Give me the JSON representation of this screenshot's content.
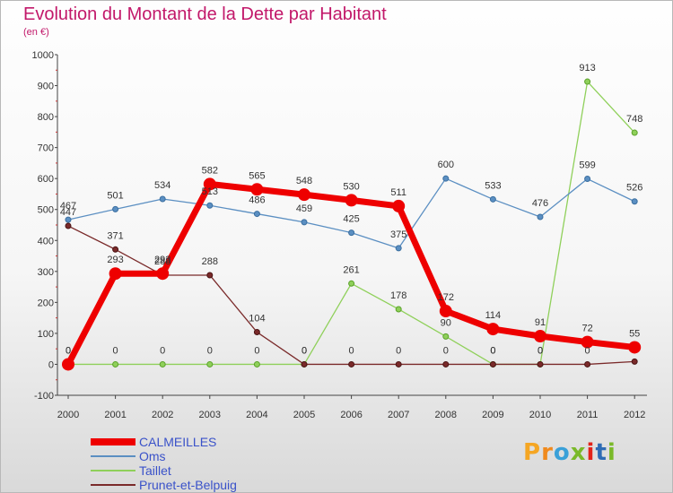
{
  "title": "Evolution du Montant de la Dette par Habitant",
  "subtitle": "(en €)",
  "logo": {
    "text": "Proxiti",
    "letters": [
      "P",
      "r",
      "o",
      "x",
      "i",
      "t",
      "i"
    ],
    "colors": [
      "#f5a623",
      "#f08a1e",
      "#3aa0d8",
      "#7ab929",
      "#e2231a",
      "#2e6cb5",
      "#7ab929"
    ]
  },
  "chart_data": {
    "type": "line",
    "x": [
      "2000",
      "2001",
      "2002",
      "2003",
      "2004",
      "2005",
      "2006",
      "2007",
      "2008",
      "2009",
      "2010",
      "2011",
      "2012"
    ],
    "y_ticks": [
      "1000",
      "900",
      "800",
      "700",
      "600",
      "500",
      "400",
      "300",
      "200",
      "100",
      "0",
      "-100"
    ],
    "ylim": [
      -100,
      1000
    ],
    "grid": false,
    "legend_position": "bottom-left",
    "series": [
      {
        "name": "CALMEILLES",
        "color": "#ee0000",
        "values": [
          0,
          293,
          293,
          582,
          565,
          548,
          530,
          511,
          172,
          114,
          91,
          72,
          55
        ],
        "labels": [
          "0",
          "293",
          "293",
          "582",
          "565",
          "548",
          "530",
          "511",
          "172",
          "114",
          "91",
          "72",
          "55"
        ]
      },
      {
        "name": "Oms",
        "color": "#5b8fc2",
        "values": [
          467,
          501,
          534,
          513,
          486,
          459,
          425,
          375,
          600,
          533,
          476,
          599,
          526
        ],
        "labels": [
          "467",
          "501",
          "534",
          "513",
          "486",
          "459",
          "425",
          "375",
          "600",
          "533",
          "476",
          "599",
          "526"
        ]
      },
      {
        "name": "Taillet",
        "color": "#8fd05a",
        "values": [
          0,
          0,
          0,
          0,
          0,
          0,
          261,
          178,
          90,
          0,
          0,
          913,
          748
        ],
        "labels": [
          "0",
          "0",
          "0",
          "0",
          "0",
          "0",
          "261",
          "178",
          "90",
          "0",
          "0",
          "913",
          "748"
        ]
      },
      {
        "name": "Prunet-et-Belpuig",
        "color": "#7a2a2a",
        "values": [
          447,
          371,
          288,
          288,
          104,
          0,
          0,
          0,
          0,
          0,
          0,
          0,
          9
        ],
        "labels": [
          "447",
          "371",
          "288",
          "288",
          "104",
          "0",
          "0",
          "0",
          "0",
          "0",
          "0",
          "0",
          ""
        ]
      }
    ]
  }
}
